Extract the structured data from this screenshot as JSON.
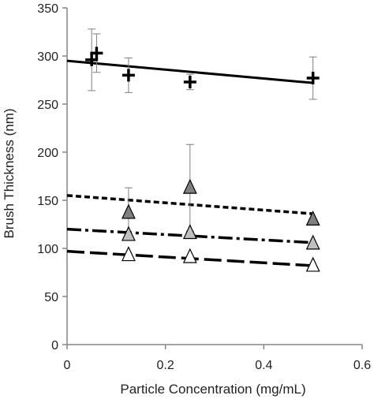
{
  "chart_data": {
    "type": "scatter",
    "title": "",
    "xlabel": "Particle Concentration (mg/mL)",
    "ylabel": "Brush Thickness (nm)",
    "xlim": [
      0,
      0.6
    ],
    "ylim": [
      0,
      350
    ],
    "x_ticks": [
      0,
      0.2,
      0.4,
      0.6
    ],
    "x_tick_labels": [
      "0",
      "0.2",
      "0.4",
      "0.6"
    ],
    "y_ticks": [
      0,
      50,
      100,
      150,
      200,
      250,
      300,
      350
    ],
    "y_tick_labels": [
      "0",
      "50",
      "100",
      "150",
      "200",
      "250",
      "300",
      "350"
    ],
    "grid": false,
    "legend": "none",
    "series": [
      {
        "marker": "plus",
        "fill": "#000000",
        "points": [
          {
            "x": 0.05,
            "y": 296,
            "err": 32
          },
          {
            "x": 0.06,
            "y": 303,
            "err": 20
          },
          {
            "x": 0.125,
            "y": 280,
            "err": 18
          },
          {
            "x": 0.25,
            "y": 273,
            "err": 8
          },
          {
            "x": 0.5,
            "y": 277,
            "err": 22
          }
        ],
        "trendline": {
          "x": [
            0,
            0.5
          ],
          "y": [
            295,
            272
          ],
          "style": "solid"
        }
      },
      {
        "marker": "triangle",
        "fill": "#7f7f7f",
        "points": [
          {
            "x": 0.125,
            "y": 137,
            "err": 26
          },
          {
            "x": 0.25,
            "y": 163,
            "err": 45
          },
          {
            "x": 0.5,
            "y": 130,
            "err": 0
          }
        ],
        "trendline": {
          "x": [
            0,
            0.5
          ],
          "y": [
            155,
            136
          ],
          "style": "dashed"
        }
      },
      {
        "marker": "triangle",
        "fill": "#c0c0c0",
        "points": [
          {
            "x": 0.125,
            "y": 114,
            "err": 0
          },
          {
            "x": 0.25,
            "y": 116,
            "err": 0
          },
          {
            "x": 0.5,
            "y": 105,
            "err": 0
          }
        ],
        "trendline": {
          "x": [
            0,
            0.5
          ],
          "y": [
            120,
            106
          ],
          "style": "dash-dot"
        }
      },
      {
        "marker": "triangle",
        "fill": "#ffffff",
        "points": [
          {
            "x": 0.125,
            "y": 93,
            "err": 0
          },
          {
            "x": 0.25,
            "y": 91,
            "err": 0
          },
          {
            "x": 0.5,
            "y": 82,
            "err": 0
          }
        ],
        "trendline": {
          "x": [
            0,
            0.5
          ],
          "y": [
            97,
            82
          ],
          "style": "long-dash"
        }
      }
    ]
  }
}
